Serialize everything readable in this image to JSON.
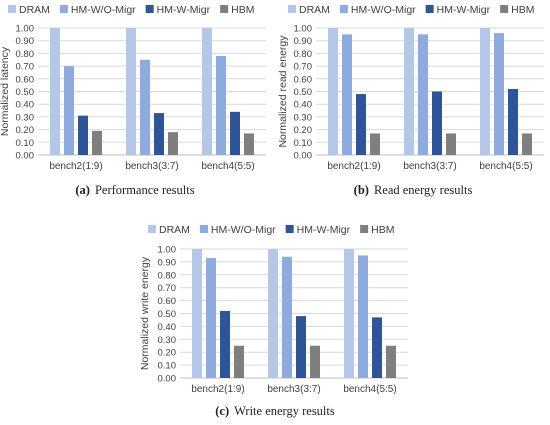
{
  "colors": {
    "DRAM": "#b4c7e7",
    "HM-W/O-Migr": "#8faadc",
    "HM-W-Migr": "#2f5597",
    "HBM": "#7f7f7f",
    "grid": "#d9d9d9",
    "axis": "#bfbfbf"
  },
  "chart_data": [
    {
      "type": "bar",
      "caption_letter": "(a)",
      "caption_text": "Performance results",
      "ylabel": "Normalized latency",
      "ylim": [
        0,
        1
      ],
      "yticks": [
        "0.00",
        "0.10",
        "0.20",
        "0.30",
        "0.40",
        "0.50",
        "0.60",
        "0.70",
        "0.80",
        "0.90",
        "1.00"
      ],
      "grid": true,
      "legend_position": "top",
      "categories": [
        "bench2(1:9)",
        "bench3(3:7)",
        "bench4(5:5)"
      ],
      "series": [
        {
          "name": "DRAM",
          "values": [
            1.0,
            1.0,
            1.0
          ]
        },
        {
          "name": "HM-W/O-Migr",
          "values": [
            0.7,
            0.75,
            0.78
          ]
        },
        {
          "name": "HM-W-Migr",
          "values": [
            0.31,
            0.33,
            0.34
          ]
        },
        {
          "name": "HBM",
          "values": [
            0.19,
            0.18,
            0.17
          ]
        }
      ]
    },
    {
      "type": "bar",
      "caption_letter": "(b)",
      "caption_text": "Read energy results",
      "ylabel": "Normalized read energy",
      "ylim": [
        0,
        1
      ],
      "yticks": [
        "0.00",
        "0.10",
        "0.20",
        "0.30",
        "0.40",
        "0.50",
        "0.60",
        "0.70",
        "0.80",
        "0.90",
        "1.00"
      ],
      "grid": true,
      "legend_position": "top",
      "categories": [
        "bench2(1:9)",
        "bench3(3:7)",
        "bench4(5:5)"
      ],
      "series": [
        {
          "name": "DRAM",
          "values": [
            1.0,
            1.0,
            1.0
          ]
        },
        {
          "name": "HM-W/O-Migr",
          "values": [
            0.95,
            0.95,
            0.96
          ]
        },
        {
          "name": "HM-W-Migr",
          "values": [
            0.48,
            0.5,
            0.52
          ]
        },
        {
          "name": "HBM",
          "values": [
            0.17,
            0.17,
            0.17
          ]
        }
      ]
    },
    {
      "type": "bar",
      "caption_letter": "(c)",
      "caption_text": "Write energy results",
      "ylabel": "Normalized write energy",
      "ylim": [
        0,
        1
      ],
      "yticks": [
        "0.00",
        "0.10",
        "0.20",
        "0.30",
        "0.40",
        "0.50",
        "0.60",
        "0.70",
        "0.80",
        "0.90",
        "1.00"
      ],
      "grid": true,
      "legend_position": "top",
      "categories": [
        "bench2(1:9)",
        "bench3(3:7)",
        "bench4(5:5)"
      ],
      "series": [
        {
          "name": "DRAM",
          "values": [
            1.0,
            1.0,
            1.0
          ]
        },
        {
          "name": "HM-W/O-Migr",
          "values": [
            0.93,
            0.94,
            0.95
          ]
        },
        {
          "name": "HM-W-Migr",
          "values": [
            0.52,
            0.48,
            0.47
          ]
        },
        {
          "name": "HBM",
          "values": [
            0.25,
            0.25,
            0.25
          ]
        }
      ]
    }
  ]
}
